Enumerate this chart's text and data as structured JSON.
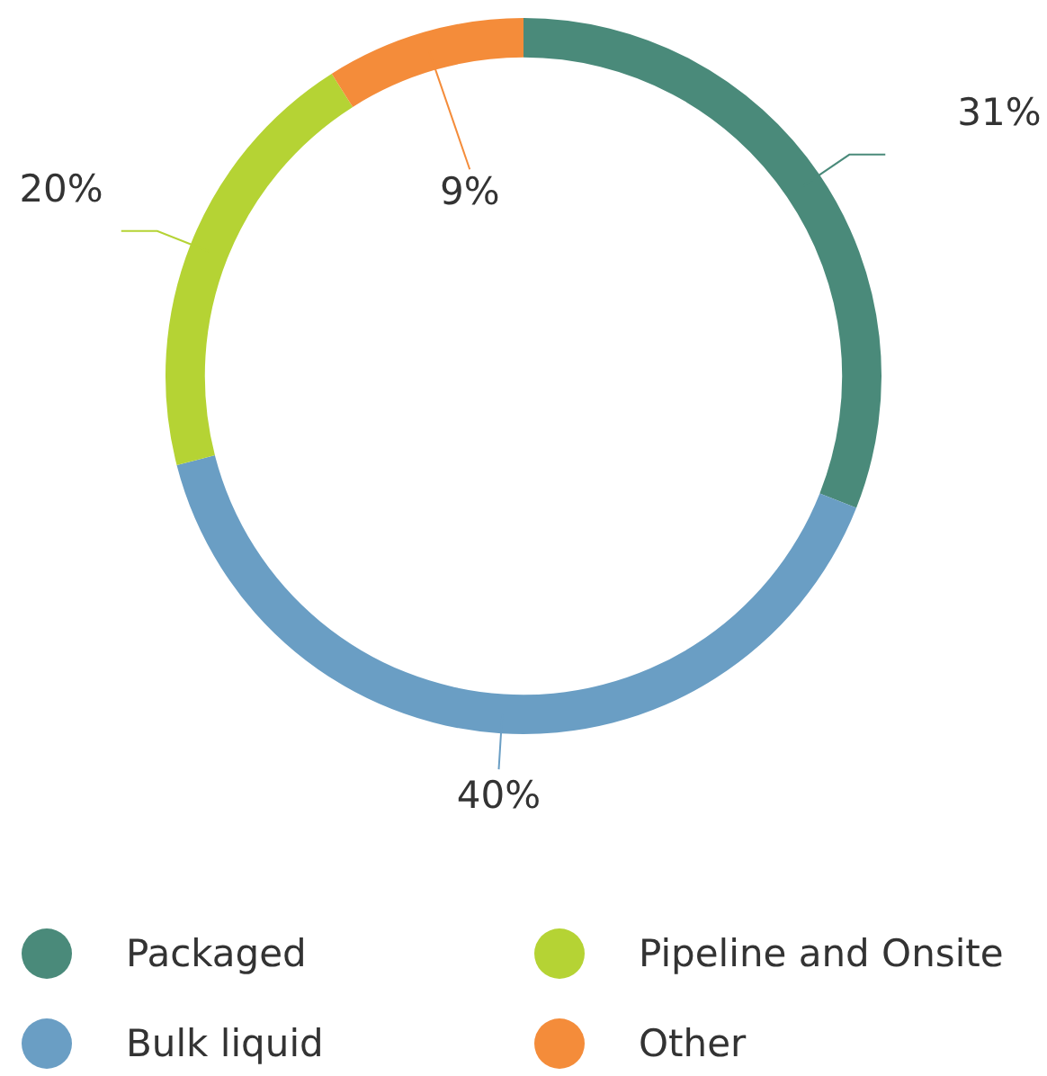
{
  "chart_data": {
    "type": "donut",
    "categories": [
      "Packaged",
      "Bulk liquid",
      "Pipeline and Onsite",
      "Other"
    ],
    "values": [
      31,
      40,
      20,
      9
    ],
    "colors": [
      "#4a8a7a",
      "#6a9ec4",
      "#b5d334",
      "#f48c3a"
    ],
    "value_labels": [
      "31%",
      "40%",
      "20%",
      "9%"
    ],
    "legend": "bottom"
  }
}
